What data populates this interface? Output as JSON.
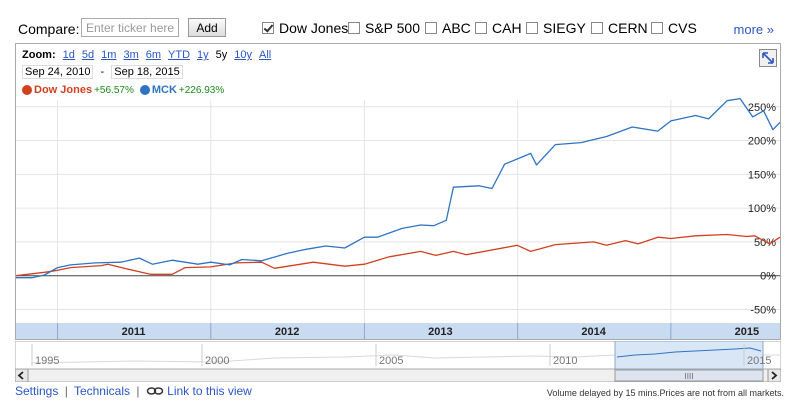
{
  "compare": {
    "label": "Compare:",
    "input_placeholder": "Enter ticker here",
    "add_label": "Add",
    "items": [
      {
        "label": "Dow Jones",
        "checked": true
      },
      {
        "label": "S&P 500",
        "checked": false
      },
      {
        "label": "ABC",
        "checked": false
      },
      {
        "label": "CAH",
        "checked": false
      },
      {
        "label": "SIEGY",
        "checked": false
      },
      {
        "label": "CERN",
        "checked": false
      },
      {
        "label": "CVS",
        "checked": false
      }
    ],
    "more_label": "more »"
  },
  "zoom": {
    "label": "Zoom:",
    "options": [
      "1d",
      "5d",
      "1m",
      "3m",
      "6m",
      "YTD",
      "1y",
      "5y",
      "10y",
      "All"
    ],
    "selected": "5y"
  },
  "range": {
    "start": "Sep 24, 2010",
    "sep": "-",
    "end": "Sep 18, 2015"
  },
  "legend": [
    {
      "name": "Dow Jones",
      "change": "+56.57%",
      "color": "#d14120"
    },
    {
      "name": "MCK",
      "change": "+226.93%",
      "color": "#2f74c4"
    }
  ],
  "chart_data": {
    "type": "line",
    "x_start": "2010-09-24",
    "x_end": "2015-09-18",
    "y_unit": "%",
    "ylim": [
      -70,
      260
    ],
    "y_ticks": [
      "-50%",
      "0%",
      "50%",
      "100%",
      "150%",
      "200%",
      "250%"
    ],
    "year_labels": [
      "2011",
      "2012",
      "2013",
      "2014",
      "2015"
    ],
    "series": [
      {
        "name": "Dow Jones",
        "color": "#d14120",
        "points": [
          [
            "2010-09-24",
            0
          ],
          [
            "2010-12-01",
            5
          ],
          [
            "2011-01-01",
            8
          ],
          [
            "2011-02-01",
            12
          ],
          [
            "2011-04-15",
            15
          ],
          [
            "2011-05-01",
            17
          ],
          [
            "2011-06-15",
            10
          ],
          [
            "2011-08-10",
            2
          ],
          [
            "2011-10-01",
            2
          ],
          [
            "2011-11-01",
            12
          ],
          [
            "2012-01-01",
            13
          ],
          [
            "2012-03-01",
            19
          ],
          [
            "2012-05-01",
            20
          ],
          [
            "2012-06-01",
            11
          ],
          [
            "2012-09-01",
            20
          ],
          [
            "2012-11-15",
            14
          ],
          [
            "2013-01-01",
            17
          ],
          [
            "2013-03-01",
            28
          ],
          [
            "2013-05-15",
            36
          ],
          [
            "2013-06-20",
            30
          ],
          [
            "2013-08-01",
            36
          ],
          [
            "2013-09-01",
            31
          ],
          [
            "2013-12-31",
            45
          ],
          [
            "2014-02-01",
            36
          ],
          [
            "2014-04-01",
            46
          ],
          [
            "2014-07-01",
            50
          ],
          [
            "2014-08-01",
            45
          ],
          [
            "2014-09-15",
            52
          ],
          [
            "2014-10-15",
            47
          ],
          [
            "2014-12-01",
            57
          ],
          [
            "2015-01-01",
            55
          ],
          [
            "2015-03-01",
            59
          ],
          [
            "2015-05-15",
            61
          ],
          [
            "2015-07-01",
            58
          ],
          [
            "2015-07-20",
            59
          ],
          [
            "2015-08-24",
            47
          ],
          [
            "2015-09-18",
            57
          ]
        ]
      },
      {
        "name": "MCK",
        "color": "#2f74c4",
        "points": [
          [
            "2010-09-24",
            -3
          ],
          [
            "2010-11-01",
            -3
          ],
          [
            "2010-12-01",
            1
          ],
          [
            "2011-01-01",
            12
          ],
          [
            "2011-02-01",
            16
          ],
          [
            "2011-04-01",
            19
          ],
          [
            "2011-06-01",
            20
          ],
          [
            "2011-07-15",
            26
          ],
          [
            "2011-08-15",
            17
          ],
          [
            "2011-10-01",
            23
          ],
          [
            "2011-12-01",
            17
          ],
          [
            "2012-01-01",
            20
          ],
          [
            "2012-02-15",
            16
          ],
          [
            "2012-03-15",
            24
          ],
          [
            "2012-05-01",
            22
          ],
          [
            "2012-07-01",
            33
          ],
          [
            "2012-08-15",
            39
          ],
          [
            "2012-10-01",
            44
          ],
          [
            "2012-11-15",
            41
          ],
          [
            "2013-01-01",
            57
          ],
          [
            "2013-02-01",
            57
          ],
          [
            "2013-04-01",
            70
          ],
          [
            "2013-05-15",
            75
          ],
          [
            "2013-06-15",
            74
          ],
          [
            "2013-07-15",
            82
          ],
          [
            "2013-08-01",
            131
          ],
          [
            "2013-10-01",
            133
          ],
          [
            "2013-11-01",
            129
          ],
          [
            "2013-12-01",
            165
          ],
          [
            "2014-02-01",
            181
          ],
          [
            "2014-02-15",
            164
          ],
          [
            "2014-04-01",
            194
          ],
          [
            "2014-06-01",
            197
          ],
          [
            "2014-08-01",
            206
          ],
          [
            "2014-10-01",
            220
          ],
          [
            "2014-12-01",
            214
          ],
          [
            "2015-01-01",
            229
          ],
          [
            "2015-03-01",
            237
          ],
          [
            "2015-04-01",
            232
          ],
          [
            "2015-05-15",
            259
          ],
          [
            "2015-06-15",
            262
          ],
          [
            "2015-07-15",
            235
          ],
          [
            "2015-08-10",
            244
          ],
          [
            "2015-09-01",
            216
          ],
          [
            "2015-09-18",
            227
          ]
        ]
      }
    ]
  },
  "navigator": {
    "years": [
      "1995",
      "2000",
      "2005",
      "2010",
      "2015"
    ],
    "scroll_handle": "IIII"
  },
  "footer": {
    "settings": "Settings",
    "sep": "|",
    "technicals": "Technicals",
    "link_view": "Link to this view",
    "note": "Volume delayed by 15 mins.Prices are not from all markets."
  }
}
